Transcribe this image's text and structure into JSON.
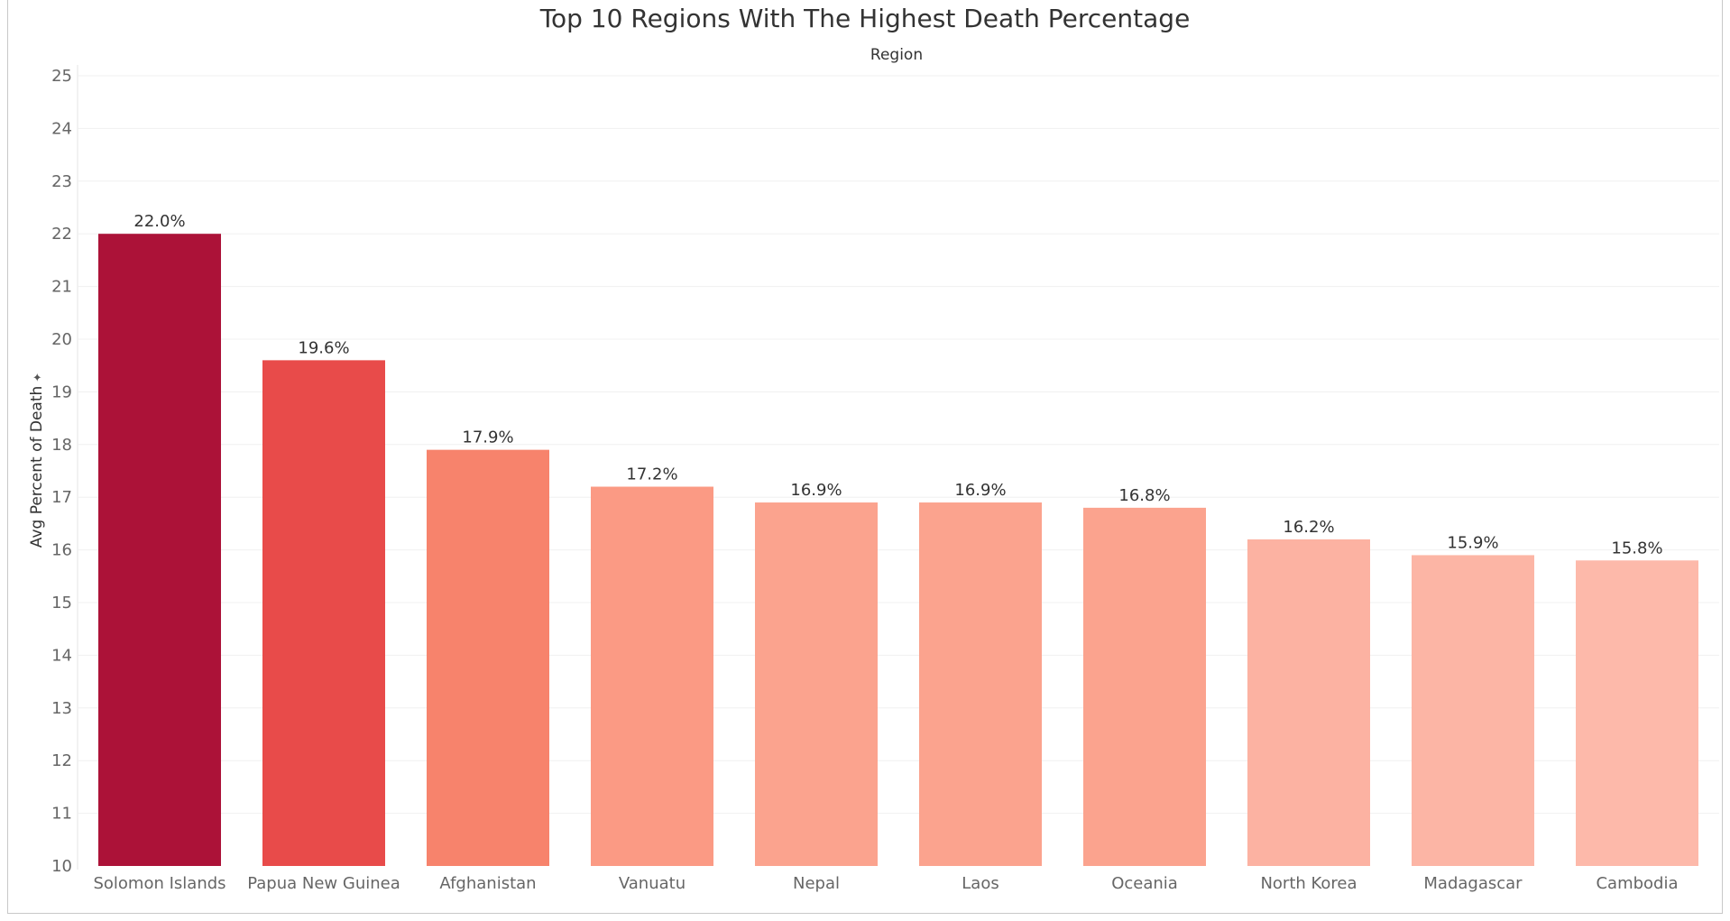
{
  "chart_data": {
    "type": "bar",
    "title": "Top 10 Regions With The Highest Death Percentage",
    "column_header": "Region",
    "ylabel": "Avg Percent of Death",
    "ylim": [
      10,
      25
    ],
    "yticks": [
      10,
      11,
      12,
      13,
      14,
      15,
      16,
      17,
      18,
      19,
      20,
      21,
      22,
      23,
      24,
      25
    ],
    "grid": true,
    "categories": [
      "Solomon Islands",
      "Papua New Guinea",
      "Afghanistan",
      "Vanuatu",
      "Nepal",
      "Laos",
      "Oceania",
      "North Korea",
      "Madagascar",
      "Cambodia"
    ],
    "values": [
      22.0,
      19.6,
      17.9,
      17.2,
      16.9,
      16.9,
      16.8,
      16.2,
      15.9,
      15.8
    ],
    "data_labels": [
      "22.0%",
      "19.6%",
      "17.9%",
      "17.2%",
      "16.9%",
      "16.9%",
      "16.8%",
      "16.2%",
      "15.9%",
      "15.8%"
    ],
    "bar_colors": [
      "#ac1238",
      "#e84b4a",
      "#f7836c",
      "#fb9a84",
      "#fba38e",
      "#fba38e",
      "#fba38e",
      "#fcb2a2",
      "#fcb5a5",
      "#fdb9aa"
    ]
  }
}
